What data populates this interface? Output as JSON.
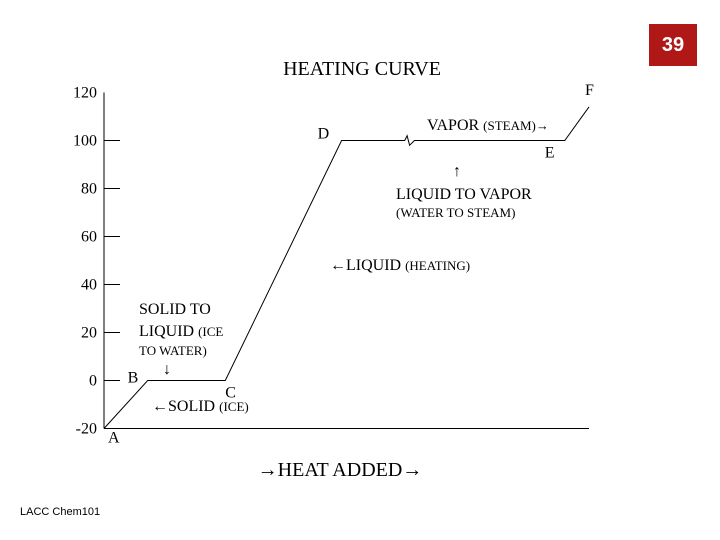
{
  "slide_number": "39",
  "footer": "LACC Chem101",
  "chart_data": {
    "type": "line",
    "title": "HEATING CURVE",
    "xlabel": "→HEAT ADDED→",
    "ylabel": "",
    "y_ticks": [
      "120",
      "100",
      "80",
      "60",
      "40",
      "20",
      "0",
      "-20"
    ],
    "ylim": [
      -20,
      120
    ],
    "x_scale": "relative heat added (unitless)",
    "xlim": [
      0,
      100
    ],
    "series": [
      {
        "points": [
          {
            "x": 0,
            "y": -20,
            "label": "A"
          },
          {
            "x": 9,
            "y": 0,
            "label": "B"
          },
          {
            "x": 25,
            "y": 0,
            "label": "C"
          },
          {
            "x": 49,
            "y": 100,
            "label": "D"
          },
          {
            "x": 62,
            "y": 100
          },
          {
            "x": 62.5,
            "y": 102
          },
          {
            "x": 63,
            "y": 98
          },
          {
            "x": 64,
            "y": 100
          },
          {
            "x": 95,
            "y": 100,
            "label": "E"
          },
          {
            "x": 100,
            "y": 114,
            "label": "F"
          }
        ]
      }
    ],
    "annotations": {
      "vapor_main": "VAPOR",
      "vapor_sub": "(STEAM)→",
      "liq_vap_main": "LIQUID TO VAPOR",
      "liq_vap_sub": "(WATER TO STEAM)",
      "liq_main": "←LIQUID",
      "liq_sub": "(HEATING)",
      "sol_liq_main1": "SOLID TO",
      "sol_liq_main2": "LIQUID",
      "sol_liq_sub1": "(ICE",
      "sol_liq_sub2": "TO WATER)",
      "solid_main": "←SOLID",
      "solid_sub": "(ICE)",
      "arrow_up": "↑",
      "arrow_down": "↓"
    }
  }
}
